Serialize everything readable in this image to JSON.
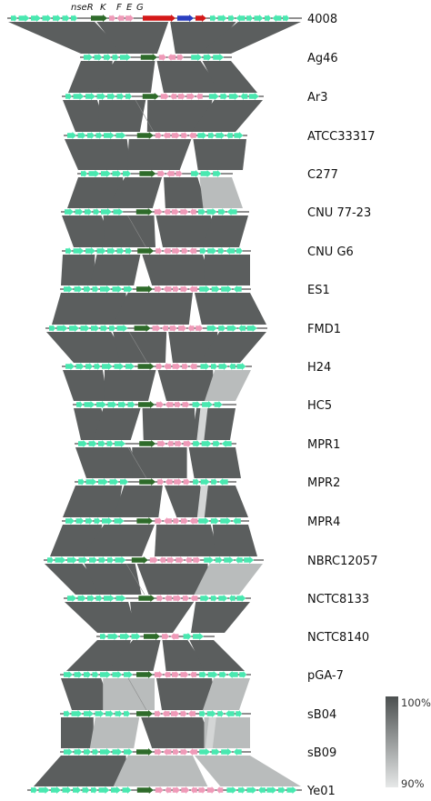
{
  "gene_labels": [
    "nseR",
    "K",
    "F",
    "E",
    "G"
  ],
  "strains": [
    "4008",
    "Ag46",
    "Ar3",
    "ATCC33317",
    "C277",
    "CNU 77-23",
    "CNU G6",
    "ES1",
    "FMD1",
    "H24",
    "HC5",
    "MPR1",
    "MPR2",
    "MPR4",
    "NBRC12057",
    "NCTC8133",
    "NCTC8140",
    "pGA-7",
    "sB04",
    "sB09",
    "Ye01"
  ],
  "legend": {
    "high": "100%",
    "low": "90%"
  },
  "colors": {
    "flank_gene": "#49e8b0",
    "k_gene": "#2e6b2a",
    "feg_gene": "#ef9ab8",
    "red_gene": "#d41818",
    "blue_gene": "#2a3ec0",
    "identity_dark": "#5b5e5e",
    "identity_light": "#d4d6d6"
  }
}
